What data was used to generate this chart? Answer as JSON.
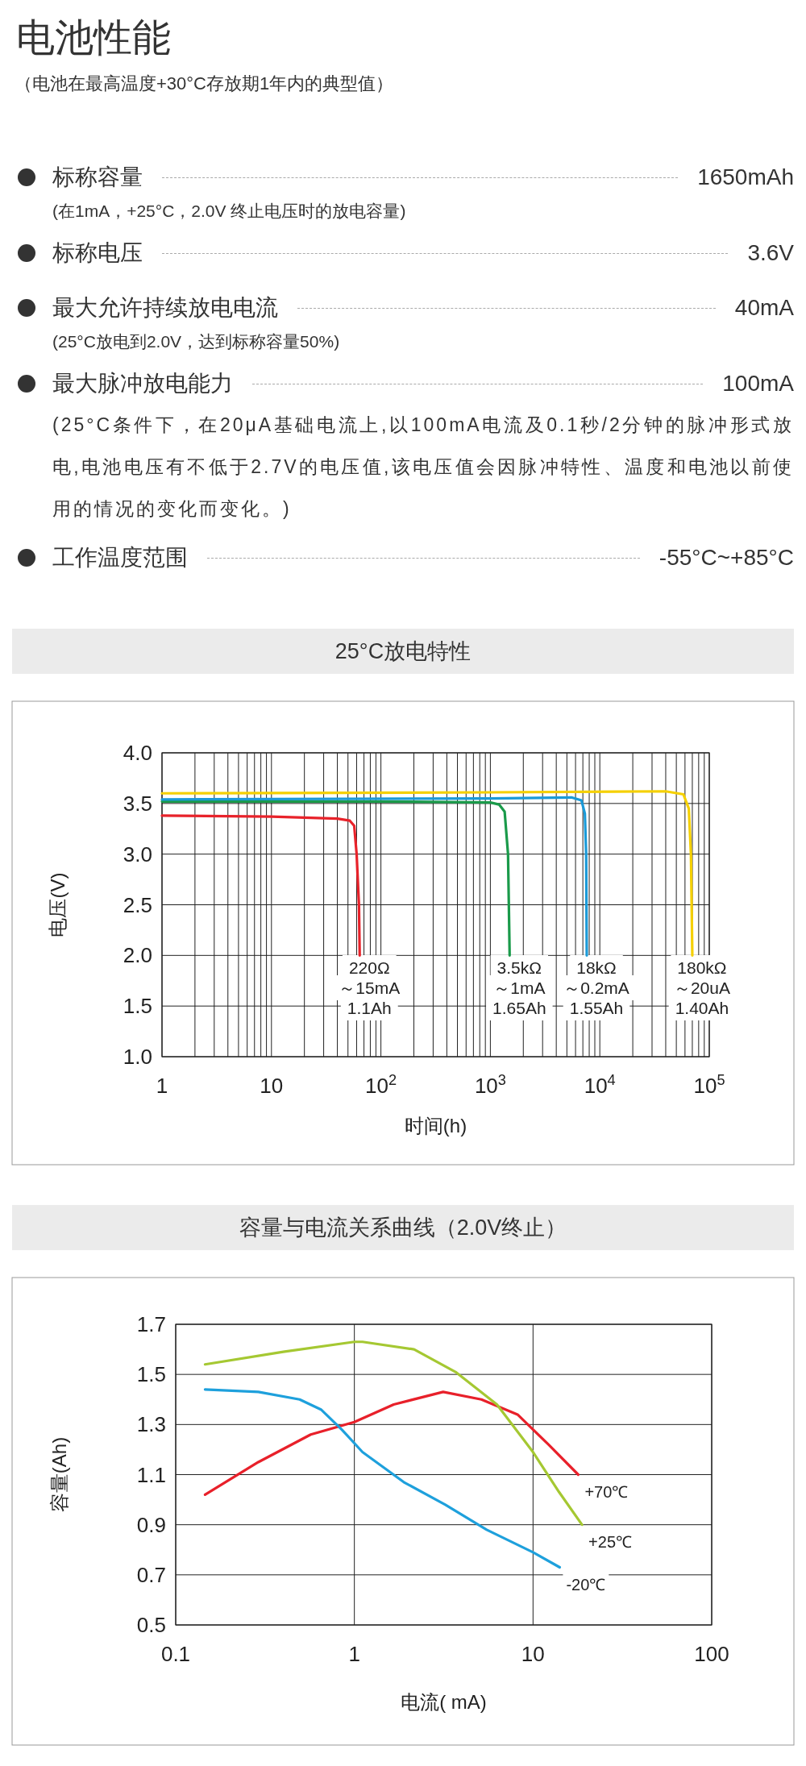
{
  "chart_data": [
    {
      "type": "other",
      "title": "电池性能",
      "subtitle": "（电池在最高温度+30°C存放期1年内的典型值）",
      "categories": [
        "标称容量",
        "标称电压",
        "最大允许持续放电电流",
        "最大脉冲放电能力",
        "工作温度范围"
      ],
      "value_labels": [
        "1650mAh",
        "3.6V",
        "40mA",
        "100mA",
        "-55°C~+85°C"
      ],
      "annotations": [
        {
          "text": "(在1mA，+25°C，2.0V 终止电压时的放电容量)",
          "x": "标称容量"
        },
        {
          "text": "(25°C放电到2.0V，达到标称容量50%)",
          "x": "最大允许持续放电电流"
        },
        {
          "text": "(25°C条件下，在20μA基础电流上,以100mA电流及0.1秒/2分钟的脉冲形式放电,电池电压有不低于2.7V的电压值,该电压值会因脉冲特性、温度和电池以前使用的情况的变化而变化。)",
          "x": "最大脉冲放电能力"
        }
      ]
    },
    {
      "type": "line",
      "title": "25°C放电特性",
      "xlabel": "时间(h)",
      "ylabel": "电压(V)",
      "log": "x",
      "grid": true,
      "legend": false,
      "xlim": [
        1,
        100000
      ],
      "ylim": [
        1.0,
        4.0
      ],
      "xticks": [
        1,
        {
          "value": 2,
          "label": null
        },
        {
          "value": 3,
          "label": null
        },
        {
          "value": 4,
          "label": null
        },
        {
          "value": 5,
          "label": null
        },
        {
          "value": 6,
          "label": null
        },
        {
          "value": 7,
          "label": null
        },
        {
          "value": 8,
          "label": null
        },
        {
          "value": 9,
          "label": null
        },
        {
          "value": 10,
          "label": "10"
        },
        {
          "value": 20,
          "label": null
        },
        {
          "value": 30,
          "label": null
        },
        {
          "value": 40,
          "label": null
        },
        {
          "value": 50,
          "label": null
        },
        {
          "value": 60,
          "label": null
        },
        {
          "value": 70,
          "label": null
        },
        {
          "value": 80,
          "label": null
        },
        {
          "value": 90,
          "label": null
        },
        {
          "value": 100,
          "label": "10$^{2}$"
        },
        {
          "value": 200,
          "label": null
        },
        {
          "value": 300,
          "label": null
        },
        {
          "value": 400,
          "label": null
        },
        {
          "value": 500,
          "label": null
        },
        {
          "value": 600,
          "label": null
        },
        {
          "value": 700,
          "label": null
        },
        {
          "value": 800,
          "label": null
        },
        {
          "value": 900,
          "label": null
        },
        {
          "value": 1000,
          "label": "10$^{3}$"
        },
        {
          "value": 2000,
          "label": null
        },
        {
          "value": 3000,
          "label": null
        },
        {
          "value": 4000,
          "label": null
        },
        {
          "value": 5000,
          "label": null
        },
        {
          "value": 6000,
          "label": null
        },
        {
          "value": 7000,
          "label": null
        },
        {
          "value": 8000,
          "label": null
        },
        {
          "value": 9000,
          "label": null
        },
        {
          "value": 10000,
          "label": "10$^{4}$"
        },
        {
          "value": 20000,
          "label": null
        },
        {
          "value": 30000,
          "label": null
        },
        {
          "value": 40000,
          "label": null
        },
        {
          "value": 50000,
          "label": null
        },
        {
          "value": 60000,
          "label": null
        },
        {
          "value": 70000,
          "label": null
        },
        {
          "value": 80000,
          "label": null
        },
        {
          "value": 90000,
          "label": null
        },
        {
          "value": 100000,
          "label": "10$^{5}$"
        }
      ],
      "yticks": [
        {
          "value": 1.0,
          "label": "1.0"
        },
        {
          "value": 1.5,
          "label": "1.5"
        },
        {
          "value": 2.0,
          "label": "2.0"
        },
        {
          "value": 2.5,
          "label": "2.5"
        },
        {
          "value": 3.0,
          "label": "3.0"
        },
        {
          "value": 3.5,
          "label": "3.5"
        },
        {
          "value": 4.0,
          "label": "4.0"
        }
      ],
      "series": [
        {
          "color": "#e8222a",
          "x": [
            1,
            10,
            40,
            52,
            57,
            60,
            63,
            64
          ],
          "values": [
            3.38,
            3.37,
            3.35,
            3.33,
            3.28,
            3.0,
            2.5,
            2.0
          ]
        },
        {
          "color": "#1a9a4a",
          "x": [
            1,
            100,
            1000,
            1200,
            1350,
            1450,
            1500
          ],
          "values": [
            3.52,
            3.52,
            3.51,
            3.49,
            3.42,
            3.0,
            2.0
          ]
        },
        {
          "color": "#1a9ad8",
          "x": [
            1,
            1000,
            5500,
            6800,
            7300,
            7500,
            7600
          ],
          "values": [
            3.54,
            3.55,
            3.56,
            3.53,
            3.4,
            3.0,
            2.0
          ]
        },
        {
          "color": "#f5d000",
          "x": [
            1,
            1000,
            40000,
            58000,
            65000,
            68000,
            70000
          ],
          "values": [
            3.6,
            3.61,
            3.62,
            3.59,
            3.45,
            3.0,
            2.0
          ]
        }
      ],
      "annotations": [
        "220Ω",
        "～15mA",
        "1.1Ah",
        "3.5kΩ",
        "～1mA",
        "1.65Ah",
        "18kΩ",
        "～0.2mA",
        "1.55Ah",
        "180kΩ",
        "～20uA",
        "1.40Ah"
      ]
    },
    {
      "type": "line",
      "title": "容量与电流关系曲线（2.0V终止）",
      "xlabel": "电流( mA)",
      "ylabel": "容量(Ah)",
      "log": "x",
      "grid": true,
      "legend": false,
      "xlim": [
        0.1,
        100
      ],
      "ylim": [
        0.5,
        1.7
      ],
      "xticks": [
        0.1,
        1,
        10,
        100
      ],
      "yticks": [
        0.5,
        0.7,
        0.9,
        1.1,
        1.3,
        1.5,
        1.7
      ],
      "series": [
        {
          "name": "+70℃",
          "color": "#e8202a",
          "x": [
            0.146,
            0.29,
            0.57,
            1,
            1.66,
            3.14,
            5.14,
            8.19,
            12.2,
            17.9
          ],
          "values": [
            1.02,
            1.15,
            1.26,
            1.31,
            1.38,
            1.43,
            1.4,
            1.34,
            1.22,
            1.1
          ]
        },
        {
          "name": "+25℃",
          "color": "#a5c832",
          "x": [
            0.146,
            0.4,
            1,
            1.11,
            2.16,
            3.68,
            6.28,
            10,
            14,
            18.8
          ],
          "values": [
            1.54,
            1.59,
            1.63,
            1.63,
            1.6,
            1.51,
            1.38,
            1.19,
            1.03,
            0.9
          ]
        },
        {
          "name": "-20℃",
          "color": "#1ea0dc",
          "x": [
            0.146,
            0.29,
            0.494,
            0.65,
            0.85,
            1.11,
            1.89,
            3.23,
            5.5,
            10,
            14.1
          ],
          "values": [
            1.44,
            1.43,
            1.4,
            1.36,
            1.28,
            1.19,
            1.07,
            0.98,
            0.88,
            0.79,
            0.73
          ]
        }
      ]
    }
  ]
}
